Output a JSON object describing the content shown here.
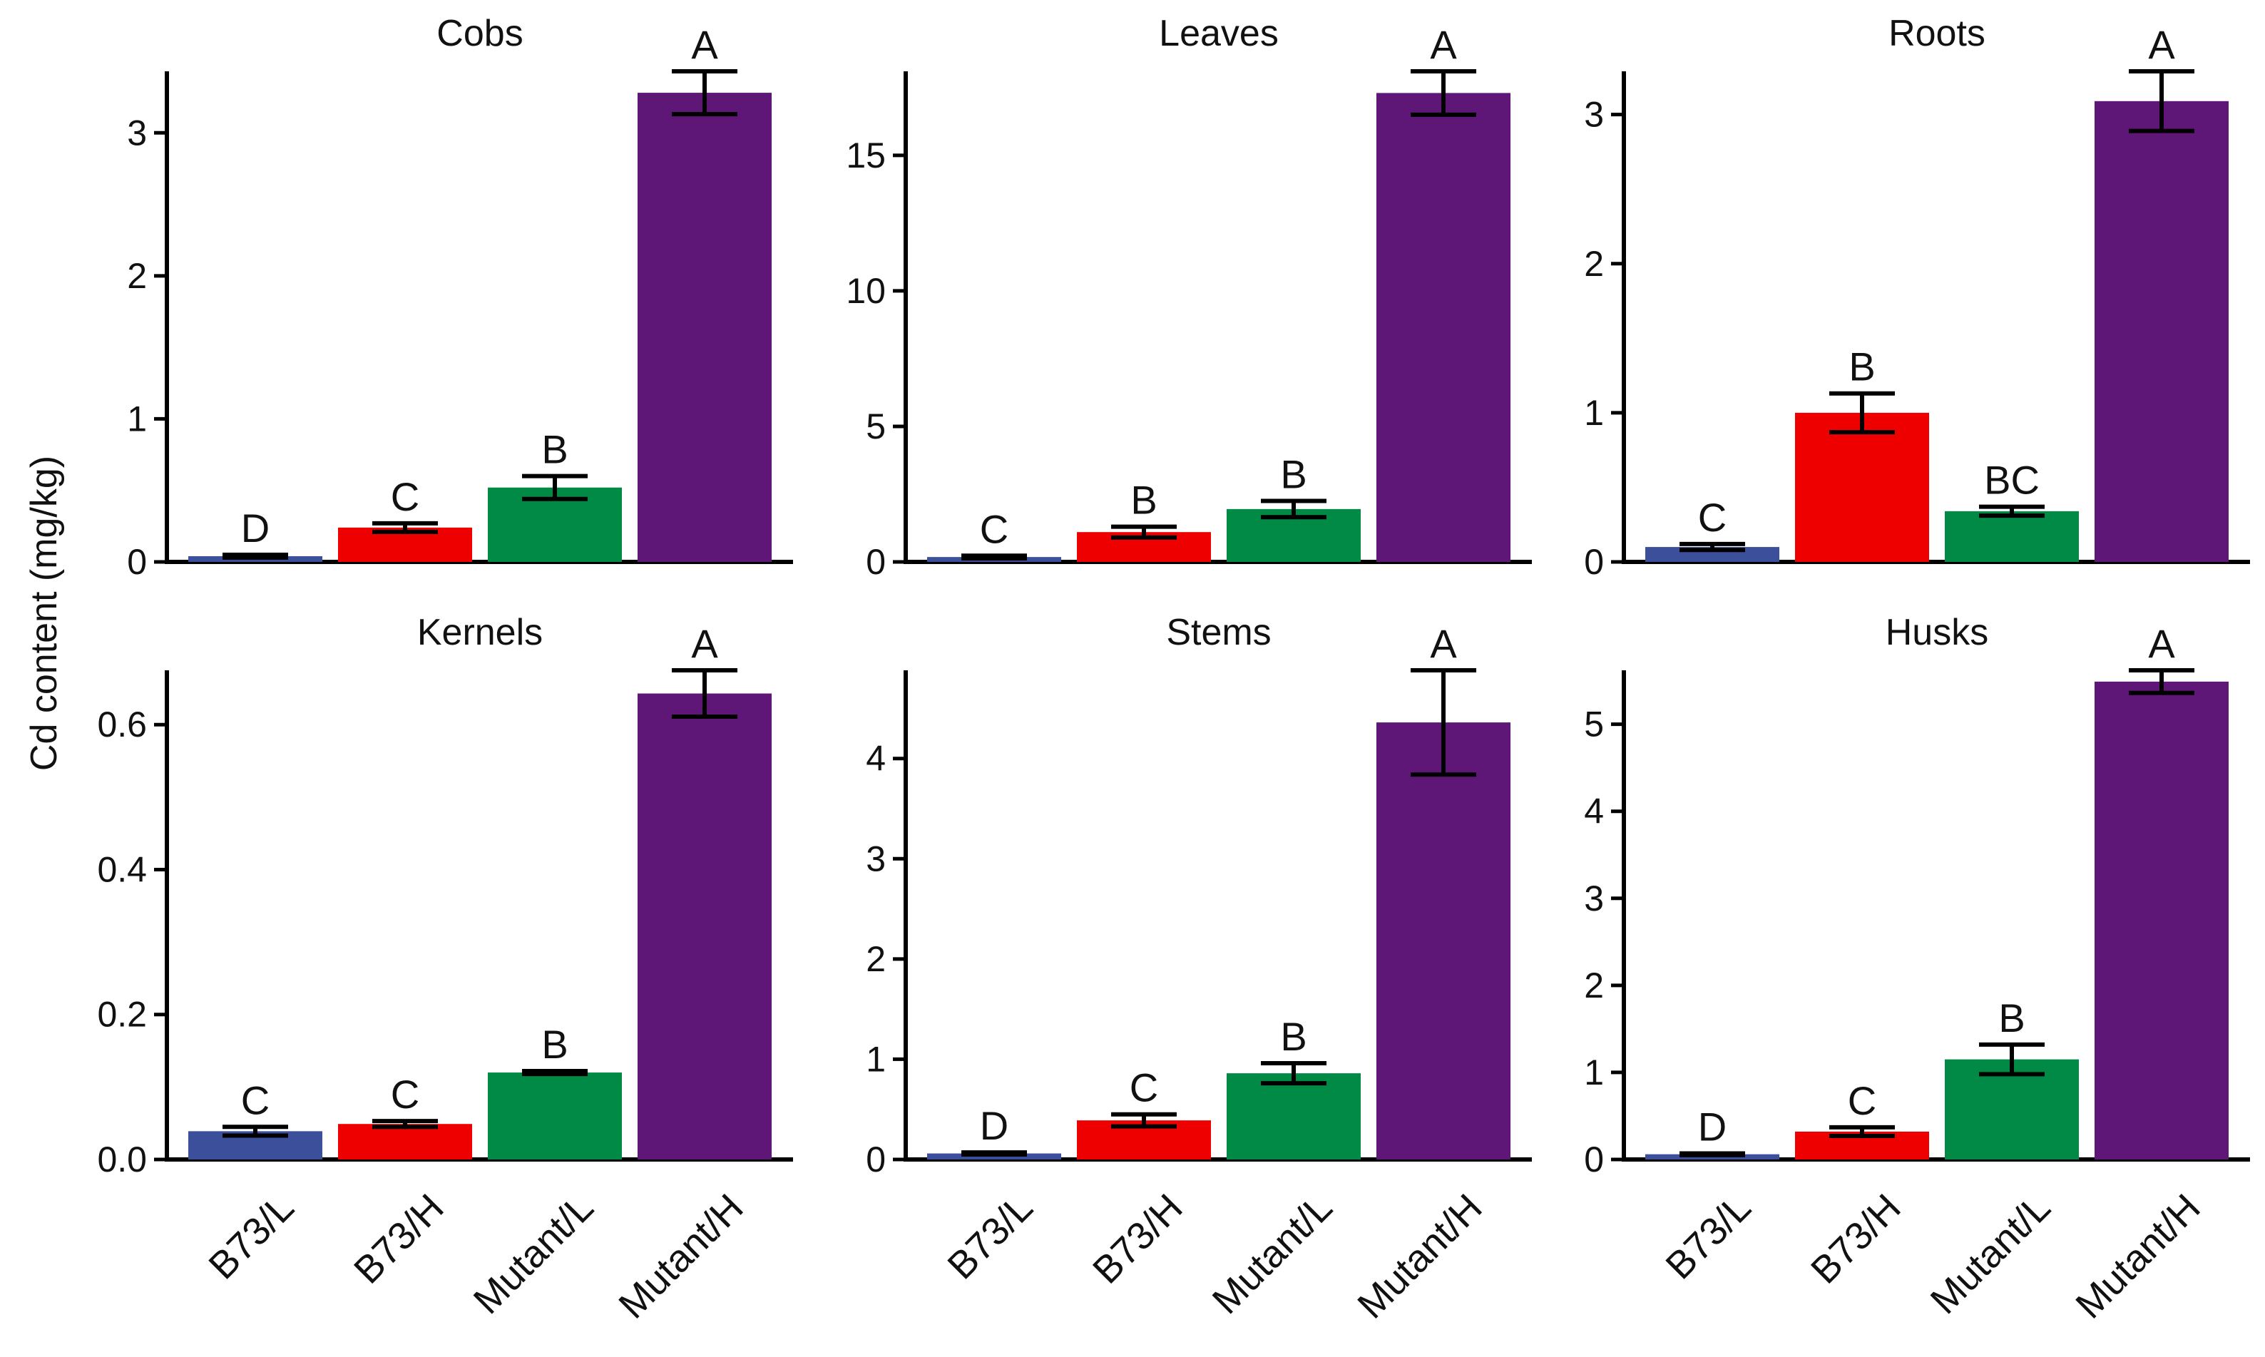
{
  "ylabel": "Cd content (mg/kg)",
  "categories": [
    "B73/L",
    "B73/H",
    "Mutant/L",
    "Mutant/H"
  ],
  "colors": [
    "#3b4f9a",
    "#ee0000",
    "#008a45",
    "#5f1777"
  ],
  "chart_data": [
    {
      "type": "bar",
      "title": "Cobs",
      "categories": [
        "B73/L",
        "B73/H",
        "Mutant/L",
        "Mutant/H"
      ],
      "values": [
        0.04,
        0.24,
        0.52,
        3.28
      ],
      "errors": [
        0.01,
        0.03,
        0.08,
        0.15
      ],
      "letters": [
        "D",
        "C",
        "B",
        "A"
      ],
      "ylim": [
        0,
        3.43
      ],
      "yticks": [
        0,
        1,
        2,
        3
      ],
      "ytick_labels": [
        "0",
        "1",
        "2",
        "3"
      ],
      "show_categories": false
    },
    {
      "type": "bar",
      "title": "Leaves",
      "categories": [
        "B73/L",
        "B73/H",
        "Mutant/L",
        "Mutant/H"
      ],
      "values": [
        0.18,
        1.1,
        1.95,
        17.3
      ],
      "errors": [
        0.05,
        0.2,
        0.3,
        0.8
      ],
      "letters": [
        "C",
        "B",
        "B",
        "A"
      ],
      "ylim": [
        0,
        18.1
      ],
      "yticks": [
        0,
        5,
        10,
        15
      ],
      "ytick_labels": [
        "0",
        "5",
        "10",
        "15"
      ],
      "show_categories": false
    },
    {
      "type": "bar",
      "title": "Roots",
      "categories": [
        "B73/L",
        "B73/H",
        "Mutant/L",
        "Mutant/H"
      ],
      "values": [
        0.1,
        1.0,
        0.34,
        3.09
      ],
      "errors": [
        0.02,
        0.13,
        0.03,
        0.2
      ],
      "letters": [
        "C",
        "B",
        "BC",
        "A"
      ],
      "ylim": [
        0,
        3.29
      ],
      "yticks": [
        0,
        1,
        2,
        3
      ],
      "ytick_labels": [
        "0",
        "1",
        "2",
        "3"
      ],
      "show_categories": false
    },
    {
      "type": "bar",
      "title": "Kernels",
      "categories": [
        "B73/L",
        "B73/H",
        "Mutant/L",
        "Mutant/H"
      ],
      "values": [
        0.039,
        0.049,
        0.12,
        0.643
      ],
      "errors": [
        0.006,
        0.004,
        0.002,
        0.032
      ],
      "letters": [
        "C",
        "C",
        "B",
        "A"
      ],
      "ylim": [
        0,
        0.675
      ],
      "yticks": [
        0,
        0.2,
        0.4,
        0.6
      ],
      "ytick_labels": [
        "0.0",
        "0.2",
        "0.4",
        "0.6"
      ],
      "show_categories": true
    },
    {
      "type": "bar",
      "title": "Stems",
      "categories": [
        "B73/L",
        "B73/H",
        "Mutant/L",
        "Mutant/H"
      ],
      "values": [
        0.06,
        0.39,
        0.86,
        4.36
      ],
      "errors": [
        0.01,
        0.06,
        0.1,
        0.52
      ],
      "letters": [
        "D",
        "C",
        "B",
        "A"
      ],
      "ylim": [
        0,
        4.88
      ],
      "yticks": [
        0,
        1,
        2,
        3,
        4
      ],
      "ytick_labels": [
        "0",
        "1",
        "2",
        "3",
        "4"
      ],
      "show_categories": true
    },
    {
      "type": "bar",
      "title": "Husks",
      "categories": [
        "B73/L",
        "B73/H",
        "Mutant/L",
        "Mutant/H"
      ],
      "values": [
        0.06,
        0.32,
        1.15,
        5.49
      ],
      "errors": [
        0.01,
        0.05,
        0.17,
        0.13
      ],
      "letters": [
        "D",
        "C",
        "B",
        "A"
      ],
      "ylim": [
        0,
        5.62
      ],
      "yticks": [
        0,
        1,
        2,
        3,
        4,
        5
      ],
      "ytick_labels": [
        "0",
        "1",
        "2",
        "3",
        "4",
        "5"
      ],
      "show_categories": true
    }
  ]
}
